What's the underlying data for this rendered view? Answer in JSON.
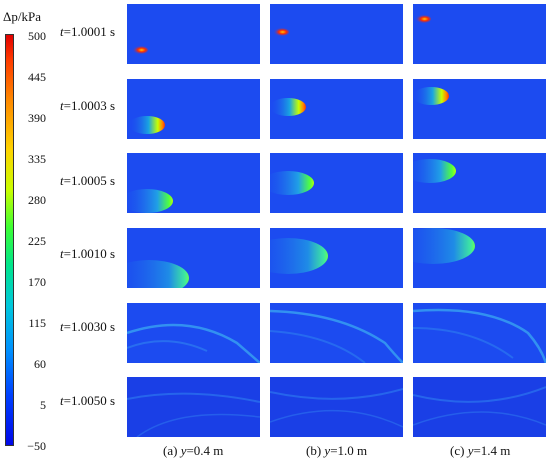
{
  "figure": {
    "colorbar": {
      "quantity": "Δp",
      "unit": "kPa",
      "ticks": [
        "500",
        "445",
        "390",
        "335",
        "280",
        "225",
        "170",
        "115",
        "60",
        "5",
        "−50"
      ]
    },
    "rows": [
      {
        "t": "t",
        "label": "=1.0001 s"
      },
      {
        "t": "t",
        "label": "=1.0003 s"
      },
      {
        "t": "t",
        "label": "=1.0005 s"
      },
      {
        "t": "t",
        "label": "=1.0010 s"
      },
      {
        "t": "t",
        "label": "=1.0030 s"
      },
      {
        "t": "t",
        "label": "=1.0050 s"
      }
    ],
    "columns": [
      {
        "prefix": "(a) ",
        "var": "y",
        "value": "=0.4 m"
      },
      {
        "prefix": "(b) ",
        "var": "y",
        "value": "=1.0 m"
      },
      {
        "prefix": "(c) ",
        "var": "y",
        "value": "=1.4 m"
      }
    ]
  }
}
